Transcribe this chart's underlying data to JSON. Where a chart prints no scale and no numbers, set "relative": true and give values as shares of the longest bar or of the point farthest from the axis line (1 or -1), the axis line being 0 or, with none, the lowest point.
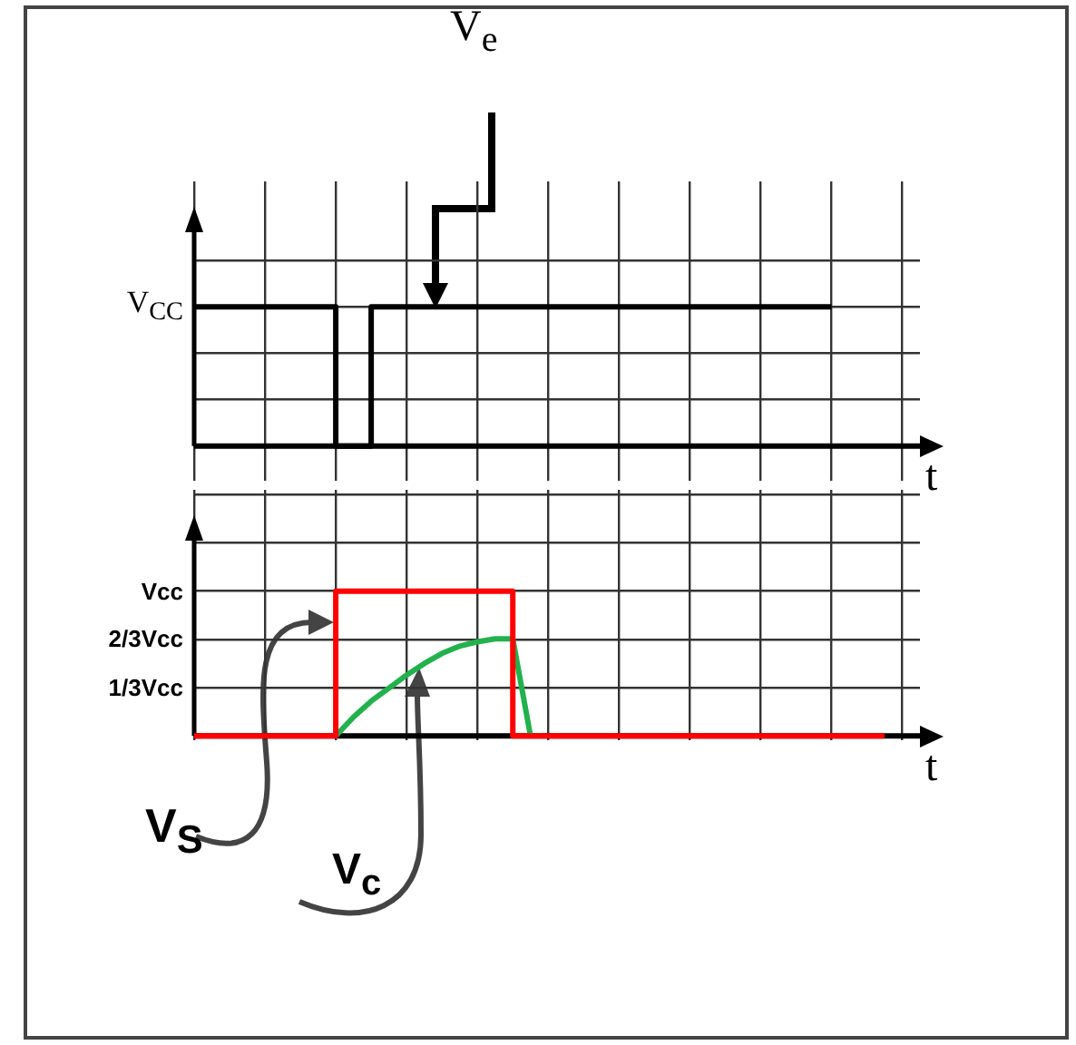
{
  "chart_data": [
    {
      "type": "step",
      "xlabel": "t",
      "relative": true,
      "tick_labels": false,
      "grid": true,
      "marker": "none",
      "categories": [
        null,
        null,
        null,
        null,
        null,
        null,
        null,
        null,
        null,
        null,
        null,
        null,
        null,
        null,
        null,
        null,
        null,
        null,
        null,
        null,
        null,
        null,
        null,
        null,
        null,
        null,
        null,
        null,
        null,
        null,
        null,
        null,
        null,
        null,
        null,
        null,
        null,
        null,
        null,
        null,
        null,
        null
      ],
      "annotations": [
        "V$_{CC}$"
      ],
      "series": [
        {
          "name": "V$_{e}$",
          "color": "#000000",
          "values": [
            1,
            1,
            1,
            1,
            1,
            1,
            1,
            1,
            0,
            0,
            1,
            1,
            1,
            1,
            1,
            1,
            1,
            1,
            1,
            1,
            1,
            1,
            1,
            1,
            1,
            1,
            1,
            1,
            1,
            1,
            1,
            1,
            1,
            1,
            1,
            1,
            1,
            null,
            null,
            null,
            null,
            null
          ]
        }
      ]
    },
    {
      "type": "step",
      "xlabel": "t",
      "relative": true,
      "tick_labels": false,
      "grid": true,
      "marker": "none",
      "categories": [
        null,
        null,
        null,
        null,
        null,
        null,
        null,
        null,
        null,
        null,
        null,
        null,
        null,
        null,
        null,
        null,
        null,
        null,
        null,
        null,
        null,
        null,
        null,
        null,
        null,
        null,
        null,
        null,
        null,
        null,
        null,
        null,
        null,
        null,
        null,
        null,
        null,
        null,
        null,
        null,
        null,
        null
      ],
      "annotations": [
        "Vcc",
        "2/3Vcc",
        "1/3Vcc"
      ],
      "series": [
        {
          "name": "V$_{S}$",
          "color": "#ff0000",
          "values": [
            0,
            0,
            0,
            0,
            0,
            0,
            0,
            0,
            1,
            1,
            1,
            1,
            1,
            1,
            1,
            1,
            1,
            1,
            0,
            0,
            0,
            0,
            0,
            0,
            0,
            0,
            0,
            0,
            0,
            0,
            0,
            0,
            0,
            0,
            0,
            0,
            0,
            0,
            0,
            0,
            null,
            null
          ]
        },
        {
          "name": "V$_{c}$",
          "type": "line",
          "color": "#22b14c",
          "values": [
            null,
            null,
            null,
            null,
            null,
            null,
            null,
            null,
            0,
            0.13,
            0.24,
            0.33,
            0.42,
            0.5,
            0.57,
            0.62,
            0.65,
            0.67,
            0.67,
            0,
            null,
            null,
            null,
            null,
            null,
            null,
            null,
            null,
            null,
            null,
            null,
            null,
            null,
            null,
            null,
            null,
            null,
            null,
            null,
            null,
            null,
            null
          ]
        }
      ]
    }
  ]
}
